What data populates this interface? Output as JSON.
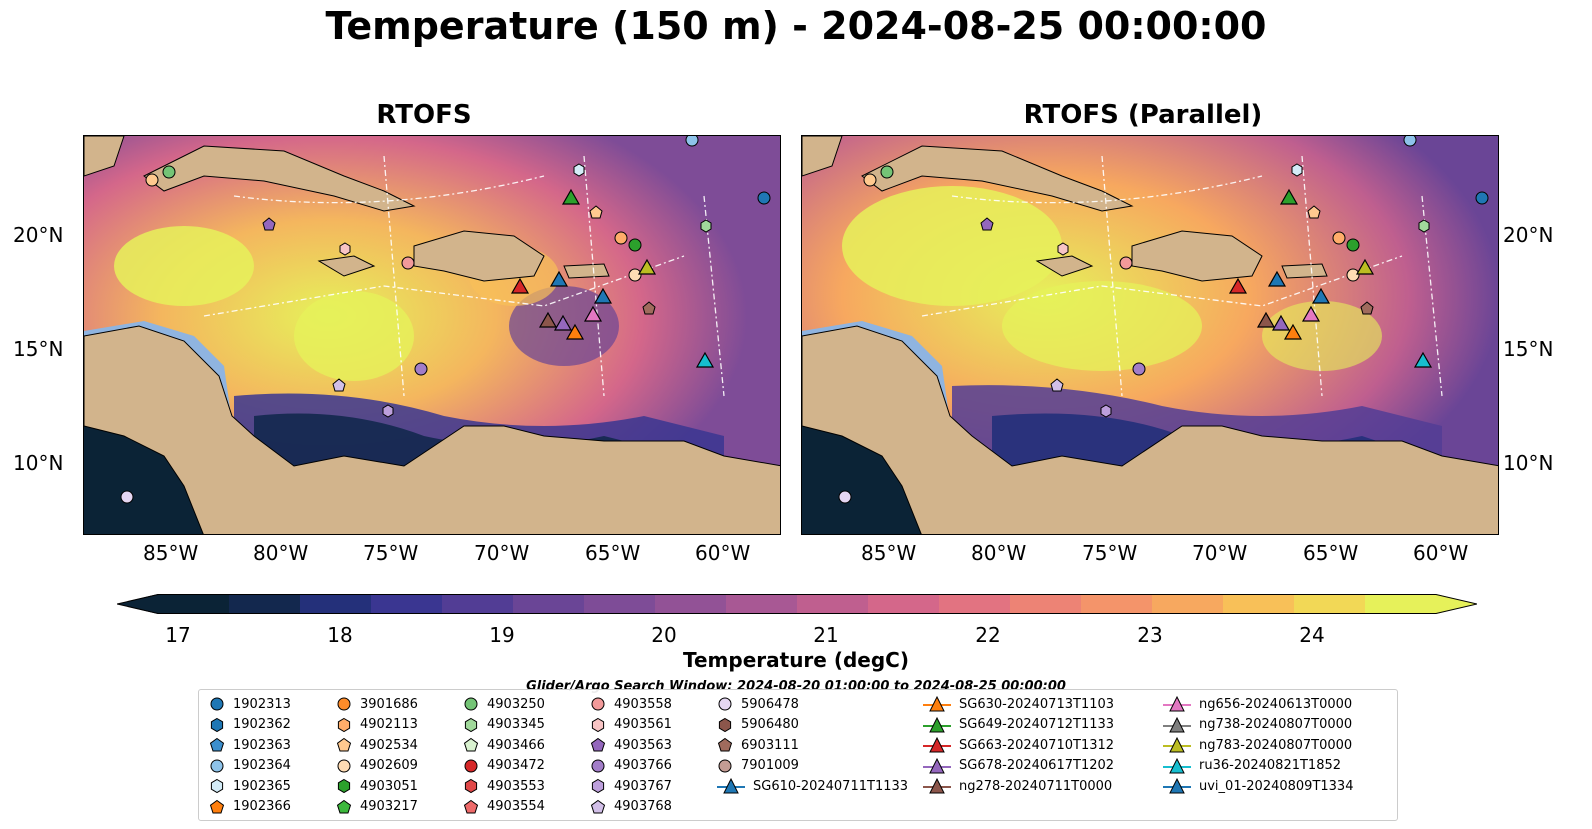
{
  "title": "Temperature (150 m) - 2024-08-25 00:00:00",
  "panels": [
    {
      "title": "RTOFS"
    },
    {
      "title": "RTOFS (Parallel)"
    }
  ],
  "lon_labels": [
    "85°W",
    "80°W",
    "75°W",
    "70°W",
    "65°W",
    "60°W"
  ],
  "lat_labels": [
    "20°N",
    "15°N",
    "10°N"
  ],
  "colorbar": {
    "label": "Temperature (degC)",
    "ticks": [
      "17",
      "18",
      "19",
      "20",
      "21",
      "22",
      "23",
      "24"
    ],
    "colors": [
      "#0b2336",
      "#13284e",
      "#24307a",
      "#3a3691",
      "#523d95",
      "#6a4596",
      "#7e4c97",
      "#925296",
      "#a85894",
      "#bf5f8f",
      "#d4678a",
      "#e27381",
      "#ed8375",
      "#f4946a",
      "#f7a85f",
      "#f8c058",
      "#f2d856",
      "#e6f15a"
    ]
  },
  "search_window": "Glider/Argo Search Window: 2024-08-20 01:00:00 to 2024-08-25 00:00:00",
  "legend": {
    "columns": [
      [
        {
          "label": "1902313",
          "marker": "circle",
          "color": "#1f77b4"
        },
        {
          "label": "1902362",
          "marker": "hexagon",
          "color": "#1f77b4"
        },
        {
          "label": "1902363",
          "marker": "pentagon",
          "color": "#3c8fce"
        },
        {
          "label": "1902364",
          "marker": "circle",
          "color": "#8ec3ea"
        },
        {
          "label": "1902365",
          "marker": "hexagon",
          "color": "#d4ecf8"
        },
        {
          "label": "1902366",
          "marker": "pentagon",
          "color": "#ff7f0e"
        }
      ],
      [
        {
          "label": "3901686",
          "marker": "circle",
          "color": "#ff8c2a"
        },
        {
          "label": "4902113",
          "marker": "hexagon",
          "color": "#ffad6a"
        },
        {
          "label": "4902534",
          "marker": "pentagon",
          "color": "#ffc98f"
        },
        {
          "label": "4902609",
          "marker": "circle",
          "color": "#ffdcb4"
        },
        {
          "label": "4903051",
          "marker": "hexagon",
          "color": "#2ca02c"
        },
        {
          "label": "4903217",
          "marker": "pentagon",
          "color": "#3cb83c"
        }
      ],
      [
        {
          "label": "4903250",
          "marker": "circle",
          "color": "#74c476"
        },
        {
          "label": "4903345",
          "marker": "hexagon",
          "color": "#a1d99b"
        },
        {
          "label": "4903466",
          "marker": "pentagon",
          "color": "#d9f2d0"
        },
        {
          "label": "4903472",
          "marker": "circle",
          "color": "#d62728"
        },
        {
          "label": "4903553",
          "marker": "hexagon",
          "color": "#e04848"
        },
        {
          "label": "4903554",
          "marker": "pentagon",
          "color": "#ee6a6a"
        }
      ],
      [
        {
          "label": "4903558",
          "marker": "circle",
          "color": "#f29a9a"
        },
        {
          "label": "4903561",
          "marker": "hexagon",
          "color": "#f8c4c4"
        },
        {
          "label": "4903563",
          "marker": "pentagon",
          "color": "#9467bd"
        },
        {
          "label": "4903766",
          "marker": "circle",
          "color": "#a27dc8"
        },
        {
          "label": "4903767",
          "marker": "hexagon",
          "color": "#bd9fdc"
        },
        {
          "label": "4903768",
          "marker": "pentagon",
          "color": "#d2bfe8"
        }
      ],
      [
        {
          "label": "5906478",
          "marker": "circle",
          "color": "#e5d6f2"
        },
        {
          "label": "5906480",
          "marker": "hexagon",
          "color": "#8c564b"
        },
        {
          "label": "6903111",
          "marker": "pentagon",
          "color": "#a06b5d"
        },
        {
          "label": "7901009",
          "marker": "circle",
          "color": "#c49c94"
        },
        {
          "label": "SG610-20240711T1133",
          "marker": "triangle-line",
          "color": "#1f77b4"
        }
      ],
      [
        {
          "label": "SG630-20240713T1103",
          "marker": "triangle-line",
          "color": "#ff7f0e"
        },
        {
          "label": "SG649-20240712T1133",
          "marker": "triangle-line",
          "color": "#2ca02c"
        },
        {
          "label": "SG663-20240710T1312",
          "marker": "triangle-line",
          "color": "#d62728"
        },
        {
          "label": "SG678-20240617T1202",
          "marker": "triangle-line",
          "color": "#9467bd"
        },
        {
          "label": "ng278-20240711T0000",
          "marker": "triangle-line",
          "color": "#8c564b"
        }
      ],
      [
        {
          "label": "ng656-20240613T0000",
          "marker": "triangle-line",
          "color": "#e377c2"
        },
        {
          "label": "ng738-20240807T0000",
          "marker": "triangle-line",
          "color": "#7f7f7f"
        },
        {
          "label": "ng783-20240807T0000",
          "marker": "triangle-line",
          "color": "#bcbd22"
        },
        {
          "label": "ru36-20240821T1852",
          "marker": "triangle-line",
          "color": "#17becf"
        },
        {
          "label": "uvi_01-20240809T1334",
          "marker": "triangle-line",
          "color": "#1f77b4"
        }
      ]
    ]
  },
  "colors": {
    "land": "#d2b48c",
    "shelf": "#8fb4e0",
    "deep": "#0b2336",
    "boundary": "#000000",
    "eez": "#ffffff"
  }
}
